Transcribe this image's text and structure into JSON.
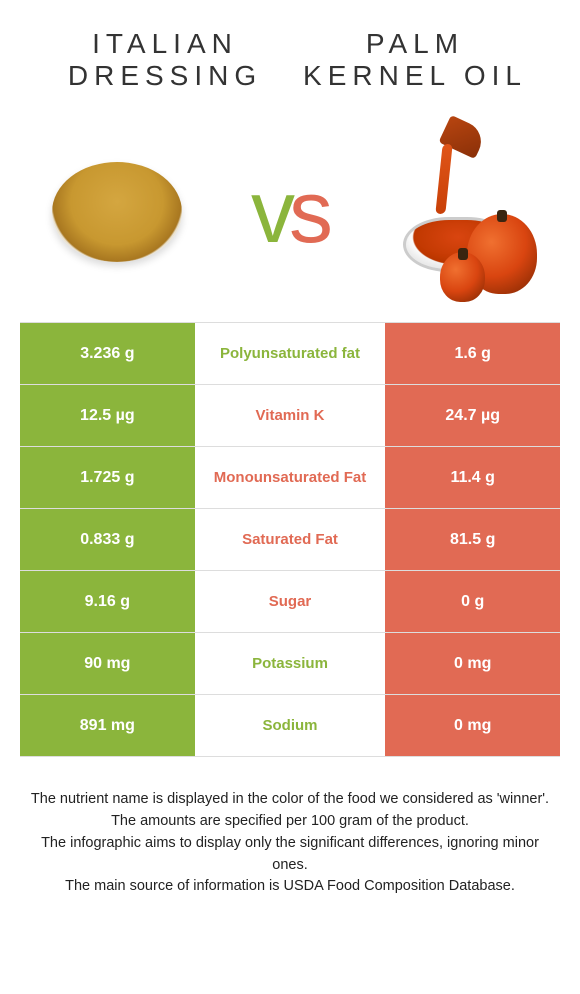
{
  "colors": {
    "left": "#8bb53c",
    "right": "#e16a54"
  },
  "header": {
    "left_title": "ITALIAN DRESSING",
    "right_title": "PALM KERNEL OIL",
    "vs": "vs"
  },
  "rows": [
    {
      "left": "3.236 g",
      "label": "Polyunsaturated fat",
      "right": "1.6 g",
      "winner": "left"
    },
    {
      "left": "12.5 µg",
      "label": "Vitamin K",
      "right": "24.7 µg",
      "winner": "right"
    },
    {
      "left": "1.725 g",
      "label": "Monounsaturated Fat",
      "right": "11.4 g",
      "winner": "right"
    },
    {
      "left": "0.833 g",
      "label": "Saturated Fat",
      "right": "81.5 g",
      "winner": "right"
    },
    {
      "left": "9.16 g",
      "label": "Sugar",
      "right": "0 g",
      "winner": "right"
    },
    {
      "left": "90 mg",
      "label": "Potassium",
      "right": "0 mg",
      "winner": "left"
    },
    {
      "left": "891 mg",
      "label": "Sodium",
      "right": "0 mg",
      "winner": "left"
    }
  ],
  "footer": {
    "line1": "The nutrient name is displayed in the color of the food we considered as 'winner'.",
    "line2": "The amounts are specified per 100 gram of the product.",
    "line3": "The infographic aims to display only the significant differences, ignoring minor ones.",
    "line4": "The main source of information is USDA Food Composition Database."
  }
}
